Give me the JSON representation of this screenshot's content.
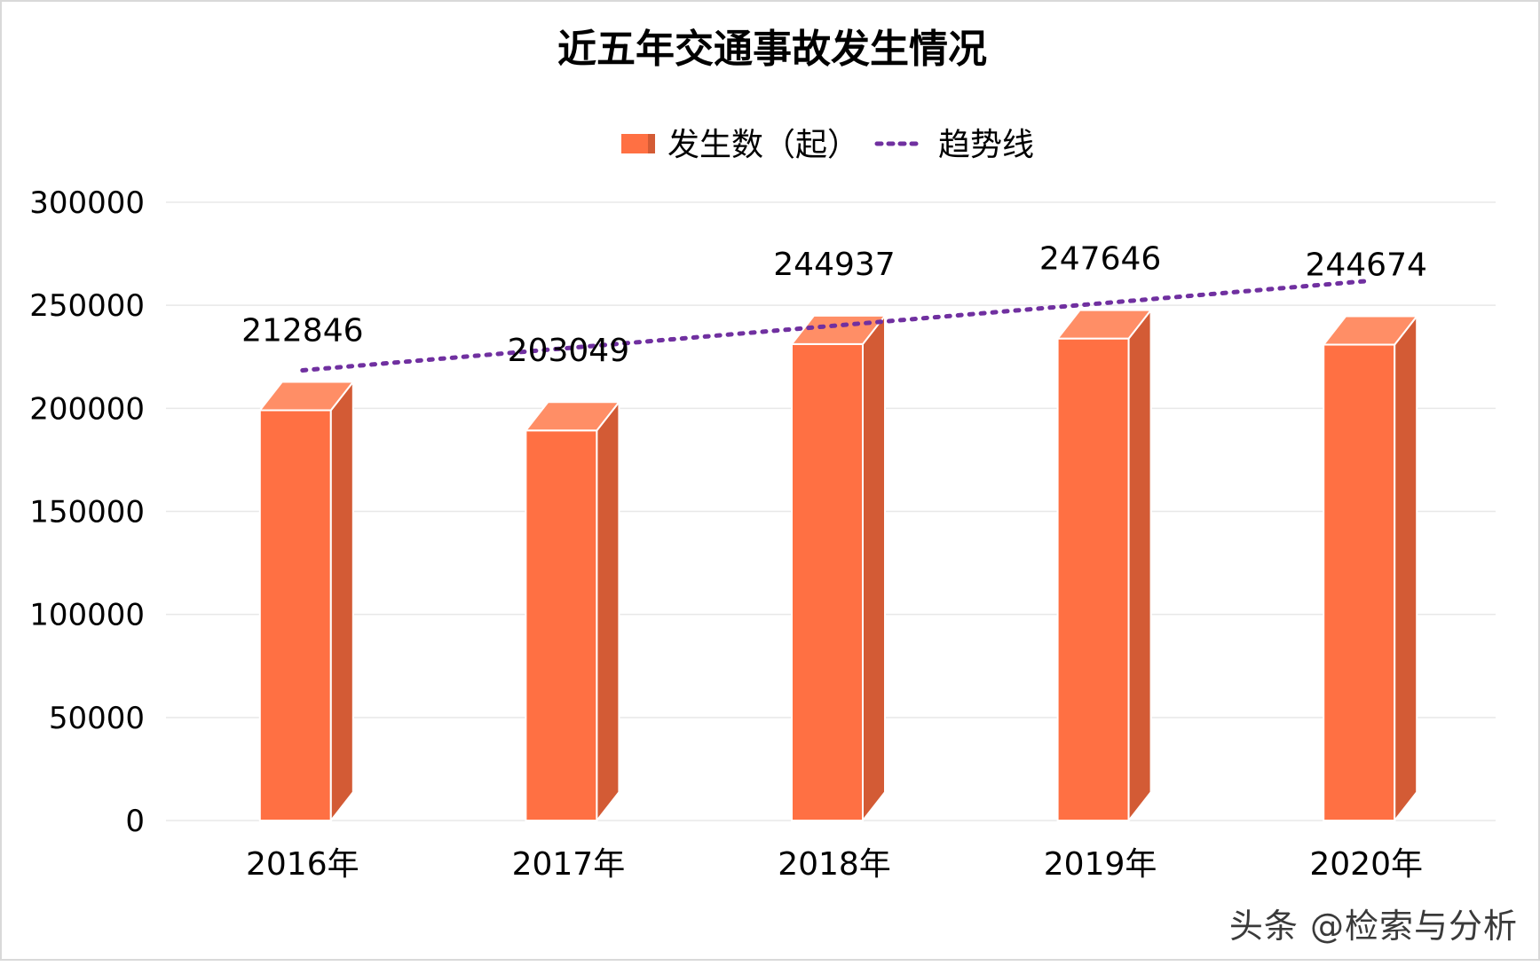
{
  "chart_data": {
    "type": "bar",
    "title": "近五年交通事故发生情况",
    "categories": [
      "2016年",
      "2017年",
      "2018年",
      "2019年",
      "2020年"
    ],
    "series": [
      {
        "name": "发生数（起）",
        "values": [
          212846,
          203049,
          244937,
          247646,
          244674
        ],
        "labels": [
          "212846",
          "203049",
          "244937",
          "247646",
          "244674"
        ]
      }
    ],
    "trendline": {
      "name": "趋势线",
      "style": "dotted",
      "type": "linear"
    },
    "ylim": [
      0,
      300000
    ],
    "yticks": [
      0,
      50000,
      100000,
      150000,
      200000,
      250000,
      300000
    ],
    "ytick_labels": [
      "0",
      "50000",
      "100000",
      "150000",
      "200000",
      "250000",
      "300000"
    ],
    "xlabel": "",
    "ylabel": "",
    "grid": true,
    "legend_position": "top-center",
    "colors": {
      "bar_front": "#FF7043",
      "bar_side": "#D35B35",
      "bar_top": "#FF8E66",
      "bar_edge": "#ffffff",
      "trend": "#7030A0",
      "grid": "#E8E8E8"
    }
  },
  "watermark": "头条 @检索与分析"
}
